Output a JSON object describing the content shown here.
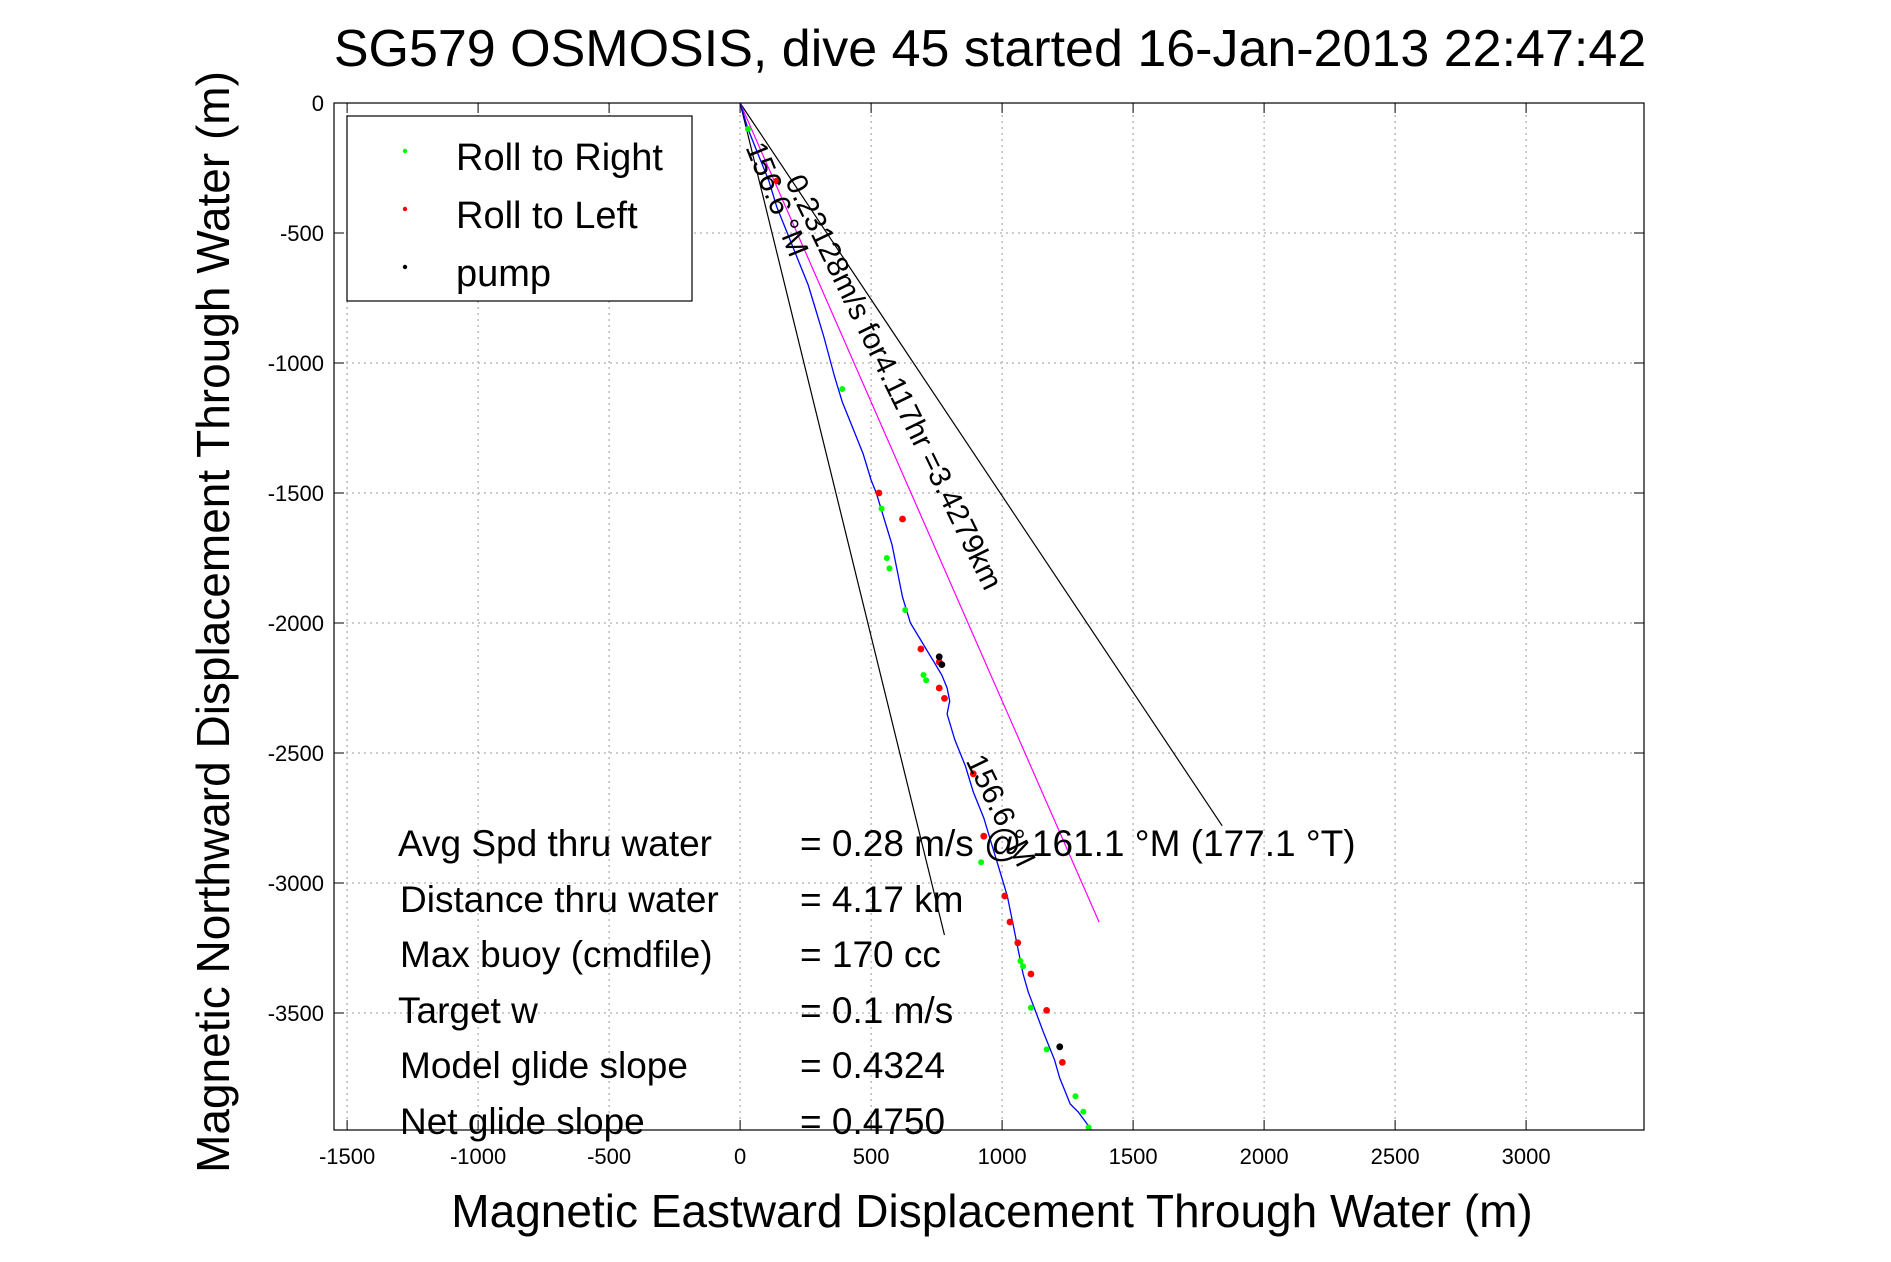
{
  "chart_data": {
    "type": "line",
    "title": "SG579 OSMOSIS, dive 45 started 16-Jan-2013 22:47:42",
    "xlabel": "Magnetic Eastward Displacement Through Water (m)",
    "ylabel": "Magnetic Northward Displacement Through Water (m)",
    "xlim": [
      -1550,
      3450
    ],
    "ylim": [
      -3950,
      0
    ],
    "xticks": [
      -1500,
      -1000,
      -500,
      0,
      500,
      1000,
      1500,
      2000,
      2500,
      3000
    ],
    "yticks": [
      0,
      -500,
      -1000,
      -1500,
      -2000,
      -2500,
      -3000,
      -3500
    ],
    "grid": true,
    "legend_position": "top-left",
    "legend": [
      {
        "label": "Roll to Right",
        "color": "#00ff00",
        "marker": "dot"
      },
      {
        "label": "Roll to Left",
        "color": "#ff0000",
        "marker": "dot"
      },
      {
        "label": "pump",
        "color": "#000000",
        "marker": "dot"
      }
    ],
    "track_color": "#0000ff",
    "track": {
      "x": [
        0,
        30,
        70,
        110,
        140,
        180,
        220,
        260,
        290,
        320,
        360,
        390,
        430,
        470,
        500,
        520,
        550,
        580,
        600,
        620,
        650,
        680,
        710,
        740,
        770,
        790,
        800,
        790,
        820,
        860,
        890,
        930,
        960,
        990,
        1020,
        1040,
        1060,
        1080,
        1100,
        1130,
        1160,
        1200,
        1220,
        1240,
        1260,
        1290,
        1320,
        1340
      ],
      "y": [
        0,
        -100,
        -200,
        -300,
        -400,
        -500,
        -600,
        -700,
        -800,
        -900,
        -1050,
        -1150,
        -1250,
        -1350,
        -1450,
        -1500,
        -1600,
        -1700,
        -1800,
        -1900,
        -2000,
        -2050,
        -2100,
        -2150,
        -2200,
        -2250,
        -2300,
        -2350,
        -2450,
        -2550,
        -2650,
        -2750,
        -2850,
        -2950,
        -3050,
        -3150,
        -3250,
        -3350,
        -3420,
        -3500,
        -3580,
        -3680,
        -3750,
        -3800,
        -3850,
        -3880,
        -3920,
        -3950
      ]
    },
    "markers": {
      "roll_right": {
        "x": [
          30,
          390,
          540,
          560,
          570,
          630,
          700,
          710,
          920,
          1070,
          1080,
          1110,
          1170,
          1280,
          1310,
          1330
        ],
        "y": [
          -100,
          -1100,
          -1560,
          -1750,
          -1790,
          -1950,
          -2200,
          -2220,
          -2920,
          -3300,
          -3320,
          -3480,
          -3640,
          -3820,
          -3880,
          -3940
        ]
      },
      "roll_left": {
        "x": [
          140,
          530,
          620,
          690,
          760,
          760,
          780,
          890,
          930,
          1010,
          1030,
          1060,
          1110,
          1170,
          1230
        ],
        "y": [
          -300,
          -1500,
          -1600,
          -2100,
          -2150,
          -2250,
          -2290,
          -2580,
          -2820,
          -3050,
          -3150,
          -3230,
          -3350,
          -3490,
          -3690
        ]
      },
      "pump": {
        "x": [
          760,
          770,
          1220
        ],
        "y": [
          -2130,
          -2160,
          -3630
        ]
      }
    },
    "reference_lines": [
      {
        "label": "156.6 °M",
        "color": "#000000",
        "x": [
          0,
          780
        ],
        "y": [
          0,
          -3200
        ]
      },
      {
        "label": "",
        "color": "#000000",
        "x": [
          0,
          1840
        ],
        "y": [
          0,
          -2780
        ]
      },
      {
        "label": "",
        "color": "#ff00ff",
        "x": [
          0,
          1370
        ],
        "y": [
          0,
          -3150
        ]
      }
    ],
    "annotations": [
      {
        "text": "156.6 °M",
        "x": 20,
        "y": -170,
        "angle": 68
      },
      {
        "text": "0.23128m/s for4.117hr =3.4279km",
        "x": 170,
        "y": -300,
        "angle": 64
      },
      {
        "text": "156.6 °M",
        "x": 860,
        "y": -2530,
        "angle": 64
      }
    ]
  },
  "stats": {
    "labels": [
      "Avg Spd thru water",
      "Distance thru water",
      "Max buoy (cmdfile)",
      "Target w",
      "Model glide slope",
      "Net glide slope"
    ],
    "values": [
      "=  0.28 m/s @ 161.1 °M (177.1 °T)",
      "=  4.17 km",
      "= 170 cc",
      "= 0.1 m/s",
      "= 0.4324",
      "= 0.4750"
    ]
  }
}
